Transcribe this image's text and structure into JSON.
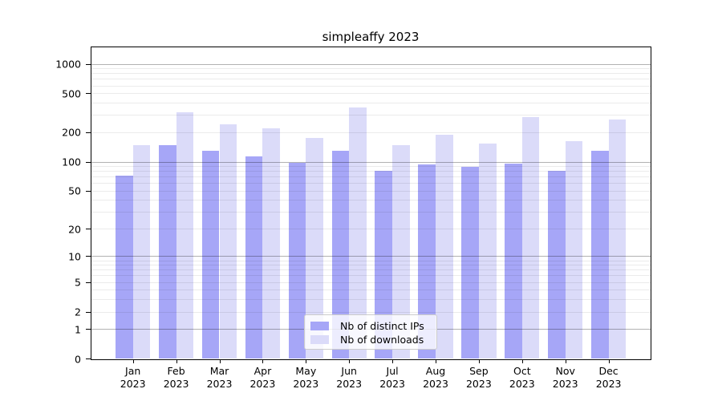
{
  "title": "simpleaffy 2023",
  "chart_data": {
    "type": "bar",
    "title": "simpleaffy 2023",
    "x_months": [
      "Jan",
      "Feb",
      "Mar",
      "Apr",
      "May",
      "Jun",
      "Jul",
      "Aug",
      "Sep",
      "Oct",
      "Nov",
      "Dec"
    ],
    "x_year": "2023",
    "categories": [
      "Jan 2023",
      "Feb 2023",
      "Mar 2023",
      "Apr 2023",
      "May 2023",
      "Jun 2023",
      "Jul 2023",
      "Aug 2023",
      "Sep 2023",
      "Oct 2023",
      "Nov 2023",
      "Dec 2023"
    ],
    "series": [
      {
        "name": "Nb of distinct IPs",
        "color": "#a6a6f7",
        "values": [
          72,
          147,
          128,
          113,
          98,
          130,
          80,
          94,
          88,
          95,
          80,
          128
        ]
      },
      {
        "name": "Nb of downloads",
        "color": "#dbdbf9",
        "values": [
          147,
          320,
          240,
          218,
          175,
          355,
          147,
          188,
          152,
          285,
          162,
          270
        ]
      }
    ],
    "y_ticks": [
      0,
      1,
      2,
      5,
      10,
      20,
      50,
      100,
      200,
      500,
      1000
    ],
    "y_scale": "log1p",
    "ylim": [
      0,
      1500
    ],
    "xlabel": "",
    "ylabel": "",
    "grid": "horizontal; minor lines 2-9 per decade, darker lines at 1, 10, 100, 1000",
    "legend_position": "lower center"
  },
  "colors": {
    "distinct_ips_bar": "#a6a6f7",
    "downloads_bar": "#dbdbf9",
    "minor_gridline": "#ebebeb",
    "major_gridline": "#b3b3b3",
    "axis": "#000000",
    "legend_border": "#cccccc",
    "background": "#ffffff"
  }
}
